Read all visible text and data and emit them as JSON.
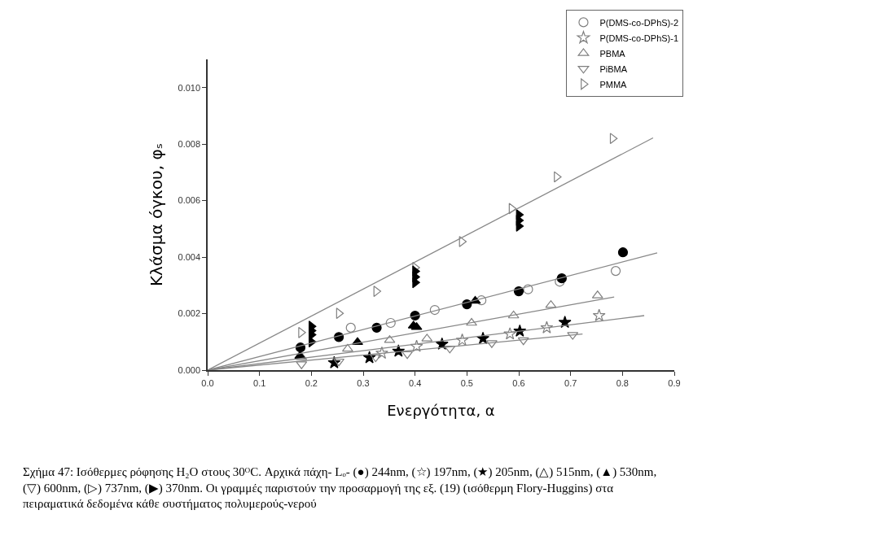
{
  "chart_data": {
    "type": "scatter",
    "xlabel": "Ενεργότητα, α",
    "ylabel": "Κλάσμα όγκου, φₛ",
    "xlim": [
      0,
      0.9
    ],
    "xticks": [
      "0.0",
      0.1,
      0.2,
      0.3,
      0.4,
      0.5,
      0.6,
      0.7,
      0.8,
      0.9
    ],
    "ylim": [
      0,
      0.011
    ],
    "yticks": [
      {
        "value": 0,
        "label": "0.000"
      },
      0.002,
      0.004,
      0.006,
      0.008,
      {
        "value": 0.01,
        "label": "0.010"
      }
    ],
    "legend": "top right",
    "series": [
      {
        "name": "P(DMS-co-DPhS)-2",
        "marker": "circle-open",
        "color": "#808080",
        "x": [
          0.276,
          0.353,
          0.438,
          0.528,
          0.618,
          0.679,
          0.787
        ],
        "values": [
          0.0015,
          0.00167,
          0.00213,
          0.00247,
          0.00286,
          0.00313,
          0.00351
        ]
      },
      {
        "marker": "circle",
        "color": "#000000",
        "x": [
          0.179,
          0.253,
          0.326,
          0.4,
          0.5,
          0.6,
          0.683,
          0.801
        ],
        "values": [
          0.0008,
          0.00117,
          0.0015,
          0.00193,
          0.00233,
          0.00279,
          0.00325,
          0.00417
        ]
      },
      {
        "name": "P(DMS-co-DPhS)-1",
        "marker": "star-open",
        "color": "#808080",
        "x": [
          0.336,
          0.403,
          0.491,
          0.583,
          0.654,
          0.755
        ],
        "values": [
          0.0006,
          0.00084,
          0.00106,
          0.00128,
          0.0015,
          0.00193
        ]
      },
      {
        "marker": "star",
        "color": "#000000",
        "x": [
          0.244,
          0.312,
          0.368,
          0.452,
          0.531,
          0.602,
          0.689
        ],
        "values": [
          0.00026,
          0.00044,
          0.00067,
          0.00092,
          0.00112,
          0.00138,
          0.00169
        ]
      },
      {
        "name": "PBMA",
        "marker": "triangle-up-open",
        "color": "#808080",
        "x": [
          0.181,
          0.27,
          0.351,
          0.423,
          0.509,
          0.59,
          0.662,
          0.752
        ],
        "values": [
          0.00046,
          0.00075,
          0.00106,
          0.00111,
          0.00167,
          0.00193,
          0.0023,
          0.00264
        ]
      },
      {
        "marker": "triangle-up",
        "color": "#000000",
        "x": [
          0.178,
          0.289,
          0.397,
          0.403,
          0.516
        ],
        "values": [
          0.0005,
          0.00099,
          0.00157,
          0.00152,
          0.00245
        ]
      },
      {
        "name": "PiBMA",
        "marker": "triangle-down-open",
        "color": "#808080",
        "x": [
          0.181,
          0.253,
          0.324,
          0.385,
          0.467,
          0.548,
          0.609,
          0.704
        ],
        "values": [
          0.00021,
          0.00031,
          0.00046,
          0.00057,
          0.00077,
          0.00096,
          0.00106,
          0.00125
        ]
      },
      {
        "name": "PMMA",
        "marker": "triangle-right-open",
        "color": "#808080",
        "x": [
          0.18,
          0.253,
          0.325,
          0.4,
          0.49,
          0.586,
          0.673,
          0.781
        ],
        "values": [
          0.00133,
          0.00201,
          0.00279,
          0.00363,
          0.00455,
          0.00572,
          0.00684,
          0.0082
        ]
      },
      {
        "marker": "triangle-right",
        "color": "#000000",
        "x": [
          0.2,
          0.2,
          0.2,
          0.2,
          0.4,
          0.4,
          0.4,
          0.6,
          0.6,
          0.6
        ],
        "values": [
          0.00155,
          0.0014,
          0.00125,
          0.001,
          0.0035,
          0.0033,
          0.0031,
          0.0055,
          0.0053,
          0.0051
        ]
      },
      {
        "type": "line",
        "color": "#888888",
        "x": [
          0,
          0.859
        ],
        "values": [
          0,
          0.00822
        ]
      },
      {
        "type": "line",
        "color": "#888888",
        "x": [
          0,
          0.867
        ],
        "values": [
          0,
          0.00415
        ]
      },
      {
        "type": "line",
        "color": "#888888",
        "x": [
          0,
          0.784
        ],
        "values": [
          0,
          0.00259
        ]
      },
      {
        "type": "line",
        "color": "#888888",
        "x": [
          0,
          0.842
        ],
        "values": [
          0,
          0.00193
        ]
      },
      {
        "type": "line",
        "color": "#888888",
        "x": [
          0,
          0.723
        ],
        "values": [
          0,
          0.00128
        ]
      }
    ],
    "annotations": [
      "Σχήμα 47: Ισόθερμες ρόφησης H₂O στους 30ᴼC. Αρχικά πάχη- Lₒ- (●) 244nm, (☆) 197nm, (★) 205nm, (△) 515nm, (▲) 530nm, (▽) 600nm, (▷) 737nm, (▶) 370nm. Οι γραμμές παριστούν την προσαρμογή της εξ. (19) (ισόθερμη Flory-Huggins) στα πειραματικά δεδομένα κάθε συστήματος πολυμερούς-νερού"
    ]
  }
}
